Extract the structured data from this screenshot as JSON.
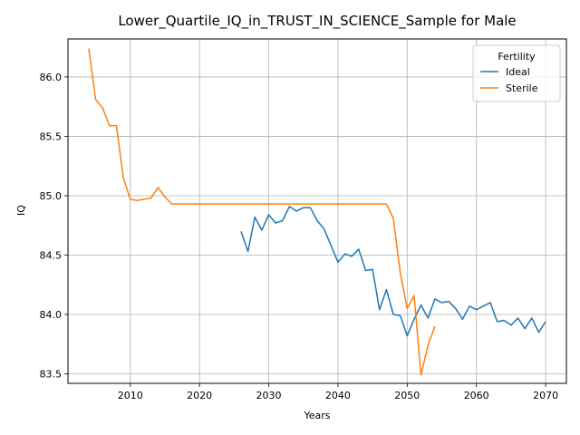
{
  "chart_data": {
    "type": "line",
    "title": "Lower_Quartile_IQ_in_TRUST_IN_SCIENCE_Sample for Male",
    "xlabel": "Years",
    "ylabel": "IQ",
    "xlim": [
      2001,
      2073
    ],
    "ylim": [
      83.42,
      86.32
    ],
    "xticks": [
      2010,
      2020,
      2030,
      2040,
      2050,
      2060,
      2070
    ],
    "yticks": [
      83.5,
      84.0,
      84.5,
      85.0,
      85.5,
      86.0
    ],
    "ytick_labels": [
      "83.5",
      "84.0",
      "84.5",
      "85.0",
      "85.5",
      "86.0"
    ],
    "grid": true,
    "legend": {
      "title": "Fertility",
      "position": "top-right"
    },
    "series": [
      {
        "name": "Ideal",
        "color": "#1f77b4",
        "x": [
          2026,
          2027,
          2028,
          2029,
          2030,
          2031,
          2032,
          2033,
          2034,
          2035,
          2036,
          2037,
          2038,
          2039,
          2040,
          2041,
          2042,
          2043,
          2044,
          2045,
          2046,
          2047,
          2048,
          2049,
          2050,
          2051,
          2052,
          2053,
          2054,
          2055,
          2056,
          2057,
          2058,
          2059,
          2060,
          2061,
          2062,
          2063,
          2064,
          2065,
          2066,
          2067,
          2068,
          2069,
          2070
        ],
        "y": [
          84.7,
          84.53,
          84.82,
          84.71,
          84.84,
          84.77,
          84.79,
          84.91,
          84.87,
          84.9,
          84.9,
          84.79,
          84.72,
          84.58,
          84.44,
          84.51,
          84.49,
          84.55,
          84.37,
          84.38,
          84.04,
          84.21,
          84.0,
          83.99,
          83.82,
          83.96,
          84.08,
          83.97,
          84.13,
          84.1,
          84.11,
          84.05,
          83.96,
          84.07,
          84.04,
          84.07,
          84.1,
          83.94,
          83.95,
          83.91,
          83.97,
          83.88,
          83.97,
          83.85,
          83.94
        ]
      },
      {
        "name": "Sterile",
        "color": "#ff7f0e",
        "x": [
          2004,
          2005,
          2006,
          2007,
          2008,
          2009,
          2010,
          2011,
          2012,
          2013,
          2014,
          2015,
          2016,
          2017,
          2018,
          2019,
          2020,
          2021,
          2022,
          2023,
          2024,
          2025,
          2026,
          2027,
          2028,
          2029,
          2030,
          2031,
          2032,
          2033,
          2034,
          2035,
          2036,
          2037,
          2038,
          2039,
          2040,
          2041,
          2042,
          2043,
          2044,
          2045,
          2046,
          2047,
          2048,
          2049,
          2050,
          2051,
          2052,
          2053,
          2054
        ],
        "y": [
          86.24,
          85.81,
          85.74,
          85.59,
          85.59,
          85.15,
          84.97,
          84.96,
          84.97,
          84.98,
          85.07,
          84.99,
          84.93,
          84.93,
          84.93,
          84.93,
          84.93,
          84.93,
          84.93,
          84.93,
          84.93,
          84.93,
          84.93,
          84.93,
          84.93,
          84.93,
          84.93,
          84.93,
          84.93,
          84.93,
          84.93,
          84.93,
          84.93,
          84.93,
          84.93,
          84.93,
          84.93,
          84.93,
          84.93,
          84.93,
          84.93,
          84.93,
          84.93,
          84.93,
          84.81,
          84.35,
          84.05,
          84.16,
          83.49,
          83.74,
          83.9
        ]
      }
    ]
  }
}
